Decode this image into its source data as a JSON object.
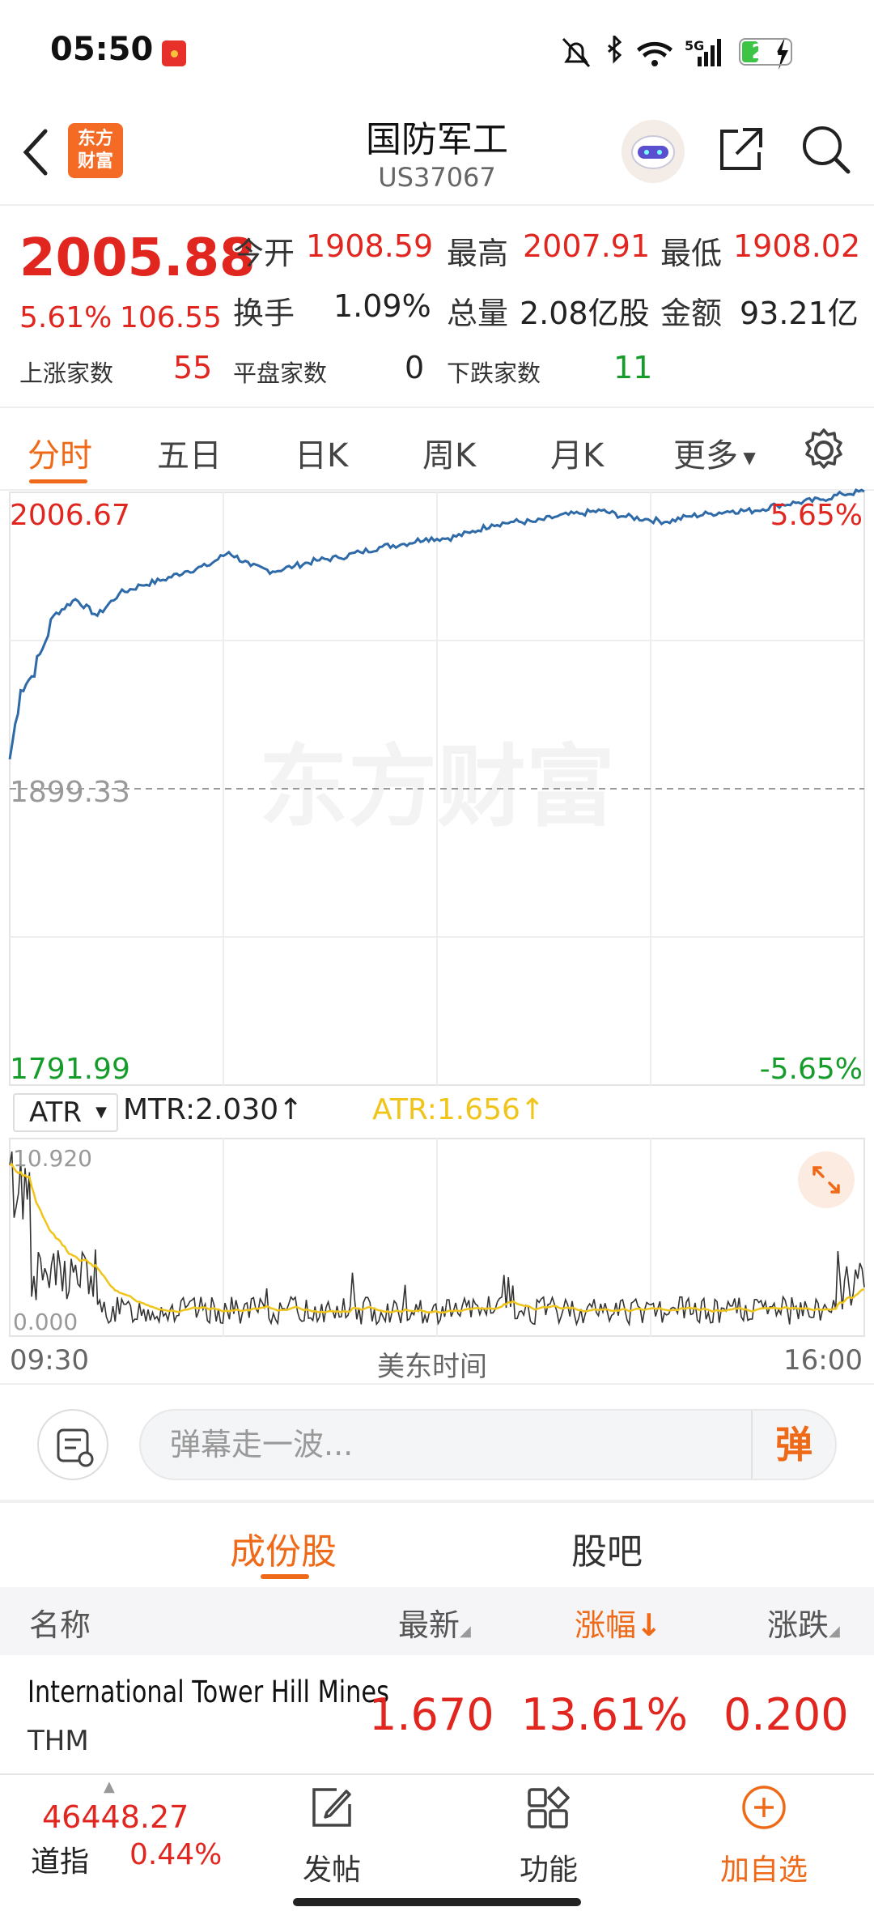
{
  "status_bar": {
    "time": "05:50",
    "network": "5G",
    "battery": "23"
  },
  "header": {
    "title": "国防军工",
    "code": "US37067",
    "logo_line1": "东方",
    "logo_line2": "财富"
  },
  "quote": {
    "price": "2005.88",
    "change_pct": "5.61%",
    "change_abs": "106.55",
    "open_label": "今开",
    "open": "1908.59",
    "high_label": "最高",
    "high": "2007.91",
    "low_label": "最低",
    "low": "1908.02",
    "turnover_label": "换手",
    "turnover": "1.09%",
    "volume_label": "总量",
    "volume": "2.08亿股",
    "amount_label": "金额",
    "amount": "93.21亿",
    "up_label": "上涨家数",
    "up": "55",
    "flat_label": "平盘家数",
    "flat": "0",
    "down_label": "下跌家数",
    "down": "11"
  },
  "tabs": [
    "分时",
    "五日",
    "日K",
    "周K",
    "月K",
    "更多"
  ],
  "chart": {
    "top_value": "2006.67",
    "top_pct": "5.65%",
    "base_value": "1899.33",
    "bottom_value": "1791.99",
    "bottom_pct": "-5.65%",
    "watermark": "东方财富",
    "indicator": "ATR",
    "mtr_label": "MTR:2.030",
    "atr_label": "ATR:1.656",
    "sub_top": "10.920",
    "sub_bottom": "0.000",
    "time_start": "09:30",
    "time_mid": "美东时间",
    "time_end": "16:00"
  },
  "chart_data": {
    "type": "line",
    "title": "",
    "xlabel": "美东时间",
    "ylabel": "",
    "x_ticks": [
      "09:30",
      "16:00"
    ],
    "ylim": [
      1791.99,
      2006.67
    ],
    "reference": 1899.33,
    "series": [
      {
        "name": "",
        "x": [
          0,
          5,
          10,
          15,
          20,
          30,
          40,
          50,
          60,
          70,
          80,
          90,
          100,
          110,
          120,
          130,
          140,
          150,
          160,
          170,
          180,
          190,
          200,
          210,
          220,
          230,
          240,
          250,
          260,
          270,
          280,
          290,
          300,
          310,
          320,
          330,
          340,
          350,
          360,
          370,
          380,
          390
        ],
        "values": [
          1910,
          1935,
          1940,
          1950,
          1962,
          1968,
          1962,
          1970,
          1973,
          1975,
          1978,
          1980,
          1985,
          1980,
          1978,
          1980,
          1982,
          1983,
          1985,
          1987,
          1988,
          1990,
          1990,
          1992,
          1995,
          1996,
          1996,
          1998,
          1999,
          2000,
          1998,
          1997,
          1996,
          1998,
          1999,
          2000,
          2000,
          2002,
          2003,
          2004,
          2006,
          2007
        ]
      }
    ]
  },
  "danmaku": {
    "placeholder": "弹幕走一波...",
    "send": "弹"
  },
  "sub_tabs": [
    "成份股",
    "股吧"
  ],
  "table": {
    "headers": {
      "name": "名称",
      "latest": "最新",
      "pct": "涨幅",
      "change": "涨跌"
    },
    "rows": [
      {
        "name": "International Tower Hill Mines",
        "code": "THM",
        "latest": "1.670",
        "pct": "13.61%",
        "change": "0.200"
      }
    ]
  },
  "bottom_bar": {
    "index_value": "46448.27",
    "index_name": "道指",
    "index_pct": "0.44%",
    "items": [
      "发帖",
      "功能",
      "加自选"
    ]
  },
  "colors": {
    "up": "#e0261f",
    "down": "#169c2a",
    "accent": "#ef6a18",
    "line": "#2e6aa8",
    "atr": "#f0c419"
  }
}
